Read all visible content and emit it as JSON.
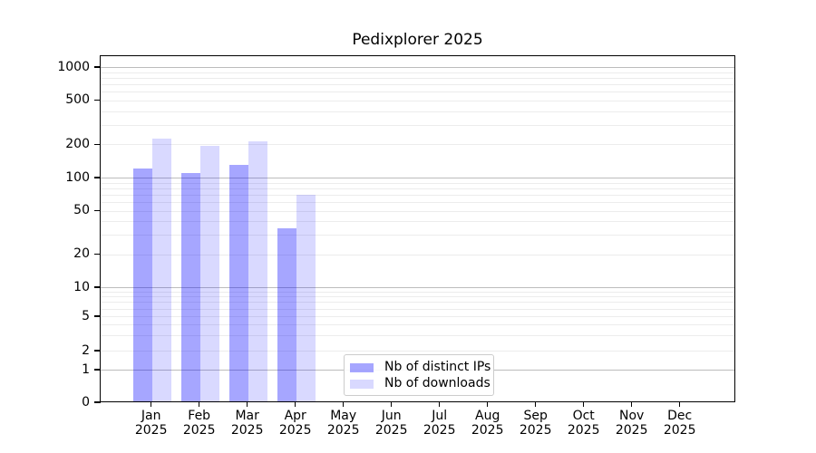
{
  "chart_data": {
    "type": "bar",
    "title": "Pedixplorer 2025",
    "categories": [
      "Jan",
      "Feb",
      "Mar",
      "Apr",
      "May",
      "Jun",
      "Jul",
      "Aug",
      "Sep",
      "Oct",
      "Nov",
      "Dec"
    ],
    "category_year": "2025",
    "series": [
      {
        "name": "Nb of distinct IPs",
        "color": "rgba(0,0,255,0.35)",
        "values": [
          118,
          108,
          127,
          34,
          0,
          0,
          0,
          0,
          0,
          0,
          0,
          0
        ]
      },
      {
        "name": "Nb of downloads",
        "color": "rgba(0,0,255,0.15)",
        "values": [
          220,
          190,
          210,
          68,
          0,
          0,
          0,
          0,
          0,
          0,
          0,
          0
        ]
      }
    ],
    "yscale": "symlog",
    "yticks": [
      0,
      1,
      2,
      5,
      10,
      20,
      50,
      100,
      200,
      500,
      1000
    ],
    "ylim": [
      0,
      1280
    ],
    "grid": "both",
    "legend_position": "lower center-left"
  },
  "colors": {
    "bar_ips": "rgba(0,0,255,0.35)",
    "bar_downloads": "rgba(0,0,255,0.15)",
    "grid_major": "#bcbcbc",
    "grid_minor": "#ececec",
    "axis": "#000000",
    "text": "#000000"
  }
}
